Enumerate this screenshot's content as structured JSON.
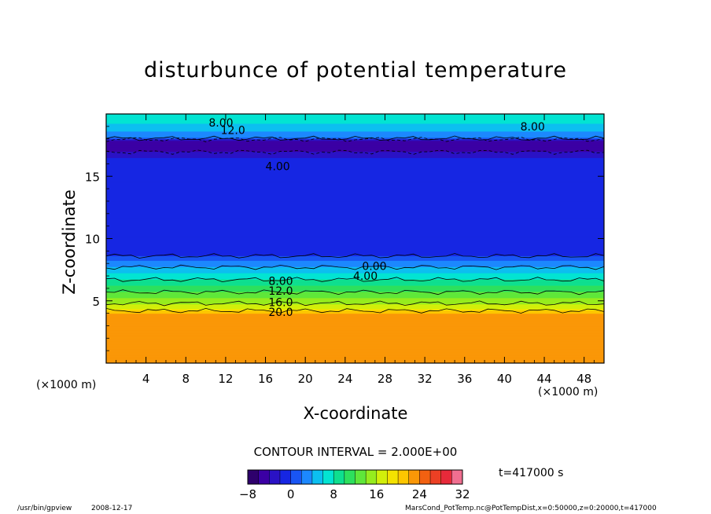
{
  "page": {
    "title": "disturbunce of potential temperature",
    "xlabel": "X-coordinate",
    "ylabel": "Z-coordinate",
    "x_unit_left": "(×1000 m)",
    "x_unit_right": "(×1000 m)",
    "contour_interval": "CONTOUR INTERVAL = 2.000E+00",
    "time": "t=417000 s",
    "footer_command": "/usr/bin/gpview",
    "footer_date": "2008-12-17",
    "footer_source": "MarsCond_PotTemp.nc@PotTempDist,x=0:50000,z=0:20000,t=417000"
  },
  "chart_data": {
    "type": "heatmap",
    "title": "disturbunce of potential temperature",
    "xlabel": "X-coordinate",
    "ylabel": "Z-coordinate",
    "x_unit": "(×1000 m)",
    "xlim": [
      0,
      50
    ],
    "ylim": [
      0,
      20
    ],
    "x_ticks": [
      4,
      8,
      12,
      16,
      20,
      24,
      28,
      32,
      36,
      40,
      44,
      48
    ],
    "y_ticks": [
      5,
      10,
      15
    ],
    "colorbar": {
      "min": -8,
      "max": 32,
      "ticks": [
        -8,
        0,
        8,
        16,
        24,
        32
      ],
      "interval": 2
    },
    "vertical_profile": [
      {
        "z": 0,
        "value": 22
      },
      {
        "z": 4.0,
        "value": 22
      },
      {
        "z": 4.4,
        "value": 18
      },
      {
        "z": 5.2,
        "value": 14
      },
      {
        "z": 6.2,
        "value": 10
      },
      {
        "z": 7.2,
        "value": 6
      },
      {
        "z": 8.2,
        "value": 2
      },
      {
        "z": 8.8,
        "value": -1
      },
      {
        "z": 15.8,
        "value": -1
      },
      {
        "z": 16.5,
        "value": -2
      },
      {
        "z": 17.4,
        "value": -6
      },
      {
        "z": 17.9,
        "value": -4
      },
      {
        "z": 18.1,
        "value": 2
      },
      {
        "z": 18.6,
        "value": 4
      },
      {
        "z": 19.2,
        "value": 6
      },
      {
        "z": 20,
        "value": 7
      }
    ],
    "contour_labels": [
      {
        "text": "8.00",
        "x": 10.3,
        "z": 19.3
      },
      {
        "text": "12.0",
        "x": 11.5,
        "z": 18.7
      },
      {
        "text": "8.00",
        "x": 41.6,
        "z": 19.0
      },
      {
        "text": "4.00",
        "x": 16.0,
        "z": 15.8
      },
      {
        "text": "0.00",
        "x": 25.7,
        "z": 7.8
      },
      {
        "text": "4.00",
        "x": 24.8,
        "z": 7.0
      },
      {
        "text": "8.00",
        "x": 16.3,
        "z": 6.6
      },
      {
        "text": "12.0",
        "x": 16.3,
        "z": 5.8
      },
      {
        "text": "16.0",
        "x": 16.3,
        "z": 4.9
      },
      {
        "text": "20.0",
        "x": 16.3,
        "z": 4.1
      }
    ],
    "axis_tick_labels_x": [
      "4",
      "8",
      "12",
      "16",
      "20",
      "24",
      "28",
      "32",
      "36",
      "40",
      "44",
      "48"
    ],
    "axis_tick_labels_y": [
      "5",
      "10",
      "15"
    ],
    "colorbar_tick_labels": [
      "−8",
      "0",
      "8",
      "16",
      "24",
      "32"
    ],
    "colors": {
      "background": "#ffffff",
      "axis": "#000000"
    }
  }
}
